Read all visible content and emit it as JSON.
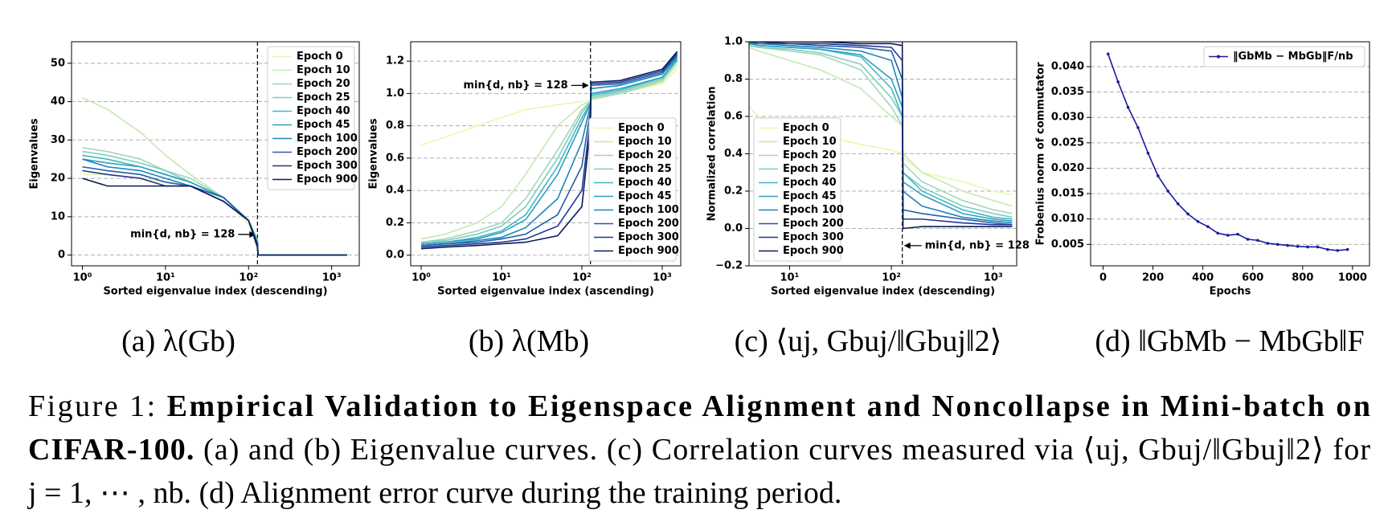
{
  "chart_data": [
    {
      "type": "line",
      "xlabel": "Sorted eigenvalue index (descending)",
      "ylabel": "Eigenvalues",
      "xscale": "log",
      "xlim": [
        0.74,
        2150
      ],
      "ylim": [
        -2.8,
        55.6
      ],
      "xticks": [
        {
          "value": 1,
          "label": "10⁰"
        },
        {
          "value": 10,
          "label": "10¹"
        },
        {
          "value": 100,
          "label": "10²"
        },
        {
          "value": 1000,
          "label": "10³"
        }
      ],
      "yticks": [
        0,
        10,
        20,
        30,
        40,
        50
      ],
      "grid": true,
      "legend": "upper right",
      "vline": 128,
      "annotation": "min{d, nb} = 128",
      "x": [
        1,
        2,
        5,
        10,
        20,
        50,
        100,
        128,
        130,
        300,
        1000,
        1536
      ],
      "series": [
        {
          "name": "Epoch 0",
          "color": "#e9f6ad",
          "values": [
            21,
            21,
            20,
            19,
            18,
            15,
            8,
            4,
            0,
            0,
            0,
            0
          ]
        },
        {
          "name": "Epoch 10",
          "color": "#c6e8b4",
          "values": [
            41,
            38,
            32,
            26,
            21,
            15,
            9,
            4,
            0,
            0,
            0,
            0
          ]
        },
        {
          "name": "Epoch 20",
          "color": "#9fd6b9",
          "values": [
            28,
            27,
            25,
            22,
            20,
            15,
            9,
            4,
            0,
            0,
            0,
            0
          ]
        },
        {
          "name": "Epoch 25",
          "color": "#7fccbb",
          "values": [
            27,
            26,
            24,
            22,
            19,
            15,
            9,
            4,
            0,
            0,
            0,
            0
          ]
        },
        {
          "name": "Epoch 40",
          "color": "#41b6c4",
          "values": [
            26,
            25,
            23,
            21,
            19,
            15,
            9,
            3,
            0,
            0,
            0,
            0
          ]
        },
        {
          "name": "Epoch 45",
          "color": "#2c9fc0",
          "values": [
            25,
            24,
            23,
            21,
            19,
            15,
            9,
            3,
            0,
            0,
            0,
            0
          ]
        },
        {
          "name": "Epoch 100",
          "color": "#1d85bb",
          "values": [
            25,
            23,
            22,
            20,
            18,
            15,
            9,
            3,
            0,
            0,
            0,
            0
          ]
        },
        {
          "name": "Epoch 200",
          "color": "#225ea8",
          "values": [
            23,
            22,
            21,
            19,
            18,
            15,
            9,
            3,
            0,
            0,
            0,
            0
          ]
        },
        {
          "name": "Epoch 300",
          "color": "#253494",
          "values": [
            22,
            21,
            20,
            18,
            18,
            14,
            9,
            3,
            0,
            0,
            0,
            0
          ]
        },
        {
          "name": "Epoch 900",
          "color": "#081d58",
          "values": [
            20,
            18,
            18,
            18,
            18,
            14,
            9,
            2,
            0,
            0,
            0,
            0
          ]
        }
      ]
    },
    {
      "type": "line",
      "xlabel": "Sorted eigenvalue index (ascending)",
      "ylabel": "Eigenvalues",
      "xscale": "log",
      "xlim": [
        0.74,
        1700
      ],
      "ylim": [
        -0.066,
        1.32
      ],
      "xticks": [
        {
          "value": 1,
          "label": "10⁰"
        },
        {
          "value": 10,
          "label": "10¹"
        },
        {
          "value": 100,
          "label": "10²"
        },
        {
          "value": 1000,
          "label": "10³"
        }
      ],
      "yticks": [
        {
          "value": 0,
          "label": "0.0"
        },
        0.2,
        0.4,
        0.6,
        0.8,
        {
          "value": 1,
          "label": "1.0"
        },
        1.2
      ],
      "grid": true,
      "legend": "lower right",
      "vline": 128,
      "annotation": "min{d, nb} = 128",
      "x": [
        1,
        2,
        5,
        10,
        20,
        50,
        100,
        128,
        130,
        300,
        1000,
        1536
      ],
      "series": [
        {
          "name": "Epoch 0",
          "color": "#e9f6ad",
          "values": [
            0.68,
            0.73,
            0.8,
            0.85,
            0.9,
            0.93,
            0.95,
            0.96,
            0.97,
            1.0,
            1.06,
            1.15
          ]
        },
        {
          "name": "Epoch 10",
          "color": "#c6e8b4",
          "values": [
            0.1,
            0.13,
            0.2,
            0.3,
            0.5,
            0.8,
            0.93,
            0.95,
            0.96,
            1.0,
            1.07,
            1.18
          ]
        },
        {
          "name": "Epoch 20",
          "color": "#9fd6b9",
          "values": [
            0.08,
            0.1,
            0.15,
            0.2,
            0.35,
            0.65,
            0.9,
            0.95,
            0.97,
            1.0,
            1.08,
            1.2
          ]
        },
        {
          "name": "Epoch 25",
          "color": "#7fccbb",
          "values": [
            0.08,
            0.09,
            0.13,
            0.18,
            0.3,
            0.6,
            0.88,
            0.95,
            0.98,
            1.01,
            1.09,
            1.2
          ]
        },
        {
          "name": "Epoch 40",
          "color": "#41b6c4",
          "values": [
            0.07,
            0.08,
            0.11,
            0.15,
            0.25,
            0.55,
            0.85,
            0.94,
            0.99,
            1.02,
            1.1,
            1.21
          ]
        },
        {
          "name": "Epoch 45",
          "color": "#2c9fc0",
          "values": [
            0.07,
            0.08,
            0.1,
            0.14,
            0.22,
            0.5,
            0.82,
            0.94,
            1.0,
            1.03,
            1.1,
            1.22
          ]
        },
        {
          "name": "Epoch 100",
          "color": "#1d85bb",
          "values": [
            0.06,
            0.07,
            0.09,
            0.11,
            0.17,
            0.35,
            0.7,
            0.93,
            1.03,
            1.05,
            1.12,
            1.23
          ]
        },
        {
          "name": "Epoch 200",
          "color": "#225ea8",
          "values": [
            0.06,
            0.07,
            0.08,
            0.1,
            0.13,
            0.25,
            0.55,
            0.9,
            1.05,
            1.06,
            1.13,
            1.24
          ]
        },
        {
          "name": "Epoch 300",
          "color": "#253494",
          "values": [
            0.05,
            0.06,
            0.07,
            0.08,
            0.1,
            0.18,
            0.4,
            0.85,
            1.06,
            1.07,
            1.14,
            1.25
          ]
        },
        {
          "name": "Epoch 900",
          "color": "#081d58",
          "values": [
            0.04,
            0.05,
            0.06,
            0.07,
            0.08,
            0.12,
            0.3,
            0.8,
            1.07,
            1.08,
            1.15,
            1.26
          ]
        }
      ]
    },
    {
      "type": "line",
      "xlabel": "Sorted eigenvalue index (descending)",
      "ylabel": "Normalized correlation",
      "xscale": "log",
      "xlim": [
        4,
        1700
      ],
      "ylim": [
        -0.2,
        1.0
      ],
      "xticks": [
        {
          "value": 10,
          "label": "10¹"
        },
        {
          "value": 100,
          "label": "10²"
        },
        {
          "value": 1000,
          "label": "10³"
        }
      ],
      "yticks": [
        {
          "value": -0.2,
          "label": "−0.2"
        },
        {
          "value": 0,
          "label": "0.0"
        },
        0.2,
        0.4,
        0.6,
        0.8,
        {
          "value": 1,
          "label": "1.0"
        }
      ],
      "grid": true,
      "legend": "lower left",
      "vline": 128,
      "annotation": "min{d, nb} = 128",
      "x": [
        4,
        5,
        10,
        20,
        50,
        100,
        128,
        130,
        200,
        500,
        1000,
        1536
      ],
      "series": [
        {
          "name": "Epoch 0",
          "color": "#e9f6ad",
          "values": [
            0.65,
            0.6,
            0.55,
            0.5,
            0.45,
            0.42,
            0.4,
            0.38,
            0.3,
            0.25,
            0.2,
            0.18
          ]
        },
        {
          "name": "Epoch 10",
          "color": "#c6e8b4",
          "values": [
            0.97,
            0.95,
            0.9,
            0.85,
            0.75,
            0.6,
            0.55,
            0.4,
            0.3,
            0.2,
            0.15,
            0.12
          ]
        },
        {
          "name": "Epoch 20",
          "color": "#9fd6b9",
          "values": [
            0.98,
            0.97,
            0.95,
            0.93,
            0.85,
            0.65,
            0.55,
            0.35,
            0.25,
            0.15,
            0.1,
            0.08
          ]
        },
        {
          "name": "Epoch 25",
          "color": "#7fccbb",
          "values": [
            0.98,
            0.97,
            0.96,
            0.94,
            0.88,
            0.7,
            0.6,
            0.3,
            0.22,
            0.12,
            0.08,
            0.06
          ]
        },
        {
          "name": "Epoch 40",
          "color": "#41b6c4",
          "values": [
            0.99,
            0.98,
            0.97,
            0.96,
            0.92,
            0.75,
            0.6,
            0.3,
            0.2,
            0.1,
            0.06,
            0.05
          ]
        },
        {
          "name": "Epoch 45",
          "color": "#2c9fc0",
          "values": [
            0.99,
            0.98,
            0.97,
            0.96,
            0.93,
            0.8,
            0.65,
            0.25,
            0.18,
            0.08,
            0.05,
            0.04
          ]
        },
        {
          "name": "Epoch 100",
          "color": "#1d85bb",
          "values": [
            0.99,
            0.99,
            0.98,
            0.97,
            0.95,
            0.9,
            0.7,
            0.2,
            0.12,
            0.06,
            0.04,
            0.03
          ]
        },
        {
          "name": "Epoch 200",
          "color": "#225ea8",
          "values": [
            1,
            0.99,
            0.99,
            0.98,
            0.97,
            0.95,
            0.8,
            0.1,
            0.08,
            0.05,
            0.03,
            0.02
          ]
        },
        {
          "name": "Epoch 300",
          "color": "#253494",
          "values": [
            1,
            1,
            0.99,
            0.99,
            0.98,
            0.97,
            0.9,
            0.05,
            0.05,
            0.03,
            0.02,
            0.02
          ]
        },
        {
          "name": "Epoch 900",
          "color": "#081d58",
          "values": [
            1,
            1,
            1,
            1,
            0.99,
            0.99,
            0.98,
            0,
            0.01,
            0.01,
            0.01,
            0.01
          ]
        }
      ]
    },
    {
      "type": "line",
      "xlabel": "Epochs",
      "ylabel": "Frobenius norm of commutator",
      "xlim": [
        -50,
        1068
      ],
      "ylim": [
        0.00078,
        0.0449
      ],
      "xticks": [
        0,
        200,
        400,
        600,
        800,
        1000
      ],
      "yticks": [
        0.005,
        {
          "value": 0.01,
          "label": "0.010"
        },
        0.015,
        {
          "value": 0.02,
          "label": "0.020"
        },
        0.025,
        {
          "value": 0.03,
          "label": "0.030"
        },
        0.035,
        {
          "value": 0.04,
          "label": "0.040"
        }
      ],
      "grid": true,
      "legend": "upper right",
      "markers": true,
      "x": [
        20,
        60,
        100,
        140,
        180,
        220,
        260,
        300,
        340,
        380,
        420,
        460,
        500,
        540,
        580,
        620,
        660,
        700,
        740,
        780,
        820,
        860,
        900,
        940,
        980
      ],
      "series": [
        {
          "name": "‖GbMb − MbGb‖F/nb",
          "color": "#1a1aa0",
          "values": [
            0.0425,
            0.037,
            0.032,
            0.028,
            0.023,
            0.0185,
            0.0155,
            0.013,
            0.011,
            0.0095,
            0.0085,
            0.0072,
            0.0068,
            0.007,
            0.006,
            0.0058,
            0.0052,
            0.005,
            0.0048,
            0.0046,
            0.0045,
            0.0045,
            0.004,
            0.0038,
            0.004
          ]
        }
      ]
    }
  ],
  "subcaptions": [
    "(a) λ(Gb)",
    "(b) λ(Mb)",
    "(c) ⟨uj, Gbuj/‖Gbuj‖2⟩",
    "(d) ‖GbMb − MbGb‖F"
  ],
  "caption": {
    "label": "Figure 1:",
    "title": "Empirical Validation to Eigenspace Alignment and Noncollapse in Mini-batch on",
    "title_end": "CIFAR-100.",
    "line2": "(a) and (b) Eigenvalue curves. (c) Correlation curves measured via ⟨uj, Gbuj/‖Gbuj‖2⟩ for",
    "line3": "j = 1, ⋯ , nb. (d) Alignment error curve during the training period."
  }
}
